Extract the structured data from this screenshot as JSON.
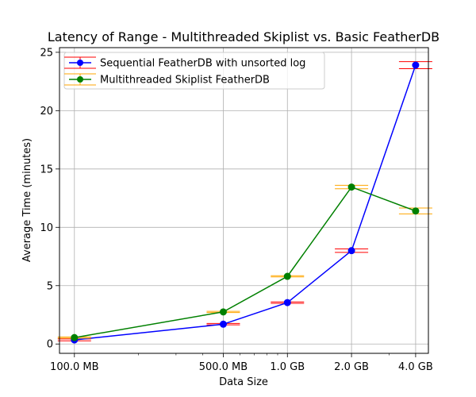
{
  "chart_data": {
    "type": "line",
    "title": "Latency of Range - Multithreaded Skiplist vs. Basic FeatherDB",
    "xlabel": "Data Size",
    "ylabel": "Average Time (minutes)",
    "x_scale": "log",
    "x_values_mb": [
      100,
      500,
      1000,
      2000,
      4000
    ],
    "categories": [
      "100.0 MB",
      "500.0 MB",
      "1.0 GB",
      "2.0 GB",
      "4.0 GB"
    ],
    "ylim": [
      -0.8,
      25.4
    ],
    "yticks": [
      0,
      5,
      10,
      15,
      20,
      25
    ],
    "grid": true,
    "legend_position": "top-left",
    "series": [
      {
        "name": "Sequential FeatherDB with unsorted log",
        "color": "#0000ff",
        "errorbar_color": "#ff0000",
        "values": [
          0.35,
          1.7,
          3.55,
          8.0,
          23.9
        ],
        "error": [
          0.08,
          0.06,
          0.06,
          0.15,
          0.3
        ]
      },
      {
        "name": "Multithreaded Skiplist FeatherDB",
        "color": "#008000",
        "errorbar_color": "#ffa500",
        "values": [
          0.55,
          2.75,
          5.8,
          13.45,
          11.4
        ],
        "error": [
          0.05,
          0.05,
          0.05,
          0.15,
          0.25
        ]
      }
    ]
  }
}
